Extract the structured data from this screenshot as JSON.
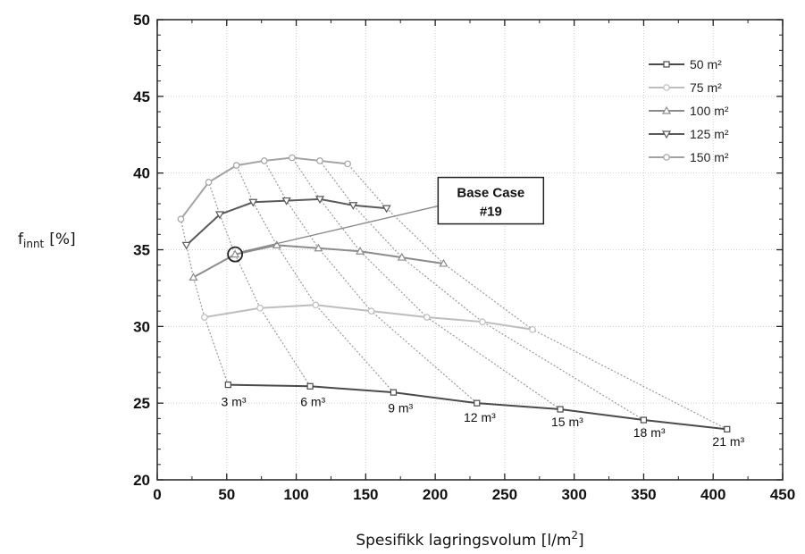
{
  "chart_data": {
    "type": "line",
    "ylabel": "f",
    "ylabel_sub": "innt",
    "ylabel_unit": "[%]",
    "xlabel": "Spesifikk lagringsvolum [l/m",
    "xlabel_sup": "2",
    "xlabel_end": "]",
    "xlim": [
      0,
      450
    ],
    "ylim": [
      20,
      50
    ],
    "xticks": [
      "0",
      "50",
      "100",
      "150",
      "200",
      "250",
      "300",
      "350",
      "400",
      "450"
    ],
    "yticks": [
      "20",
      "25",
      "30",
      "35",
      "40",
      "45",
      "50"
    ],
    "grid": true,
    "legend_position": "top-right",
    "series": [
      {
        "name": "50 m²",
        "color": "#4a4a4a",
        "marker": "square",
        "x": [
          51,
          110,
          170,
          230,
          290,
          350,
          410
        ],
        "y": [
          26.2,
          26.1,
          25.7,
          25.0,
          24.6,
          23.9,
          23.3
        ]
      },
      {
        "name": "75 m²",
        "color": "#bdbdbd",
        "marker": "circle",
        "x": [
          34,
          74,
          114,
          154,
          194,
          234,
          270
        ],
        "y": [
          30.6,
          31.2,
          31.4,
          31.0,
          30.6,
          30.3,
          29.8
        ]
      },
      {
        "name": "100 m²",
        "color": "#8c8c8c",
        "marker": "triangle-up",
        "x": [
          26,
          56,
          86,
          116,
          146,
          176,
          206
        ],
        "y": [
          33.2,
          34.7,
          35.3,
          35.1,
          34.9,
          34.5,
          34.1
        ]
      },
      {
        "name": "125 m²",
        "color": "#5a5a5a",
        "marker": "triangle-down",
        "x": [
          21,
          45,
          69,
          93,
          117,
          141,
          165
        ],
        "y": [
          35.3,
          37.3,
          38.1,
          38.2,
          38.3,
          37.9,
          37.7
        ]
      },
      {
        "name": "150 m²",
        "color": "#a3a3a3",
        "marker": "circle",
        "x": [
          17,
          37,
          57,
          77,
          97,
          117,
          137
        ],
        "y": [
          37.0,
          39.4,
          40.5,
          40.8,
          41.0,
          40.8,
          40.6
        ]
      }
    ],
    "volume_labels": [
      {
        "text": "3 m³",
        "x": 55,
        "y": 24.8
      },
      {
        "text": "6 m³",
        "x": 112,
        "y": 24.8
      },
      {
        "text": "9 m³",
        "x": 175,
        "y": 24.4
      },
      {
        "text": "12 m³",
        "x": 232,
        "y": 23.8
      },
      {
        "text": "15 m³",
        "x": 295,
        "y": 23.5
      },
      {
        "text": "18 m³",
        "x": 354,
        "y": 22.8
      },
      {
        "text": "21 m³",
        "x": 411,
        "y": 22.2
      }
    ],
    "annotation": {
      "line1": "Base Case",
      "line2": "#19",
      "point": {
        "x": 56,
        "y": 34.7
      },
      "box_center": {
        "x": 240,
        "y": 38.2
      }
    }
  }
}
